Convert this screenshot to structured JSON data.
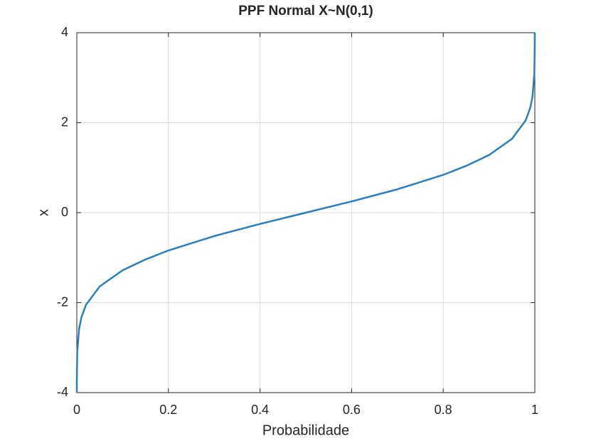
{
  "chart_data": {
    "type": "line",
    "title": "PPF Normal X~N(0,1)",
    "xlabel": "Probabilidade",
    "ylabel": "x",
    "x": [
      3e-05,
      0.0001,
      0.001,
      0.005,
      0.01,
      0.02,
      0.05,
      0.1,
      0.15,
      0.2,
      0.3,
      0.4,
      0.5,
      0.6,
      0.7,
      0.8,
      0.85,
      0.9,
      0.95,
      0.98,
      0.99,
      0.995,
      0.999,
      0.9999,
      0.99997
    ],
    "series": [
      {
        "name": "PPF",
        "color": "#2c7fbf",
        "values": [
          -4.0,
          -3.72,
          -3.09,
          -2.58,
          -2.33,
          -2.05,
          -1.64,
          -1.28,
          -1.04,
          -0.84,
          -0.52,
          -0.25,
          0,
          0.25,
          0.52,
          0.84,
          1.04,
          1.28,
          1.64,
          2.05,
          2.33,
          2.58,
          3.09,
          3.72,
          4.0
        ]
      }
    ],
    "xlim": [
      0,
      1
    ],
    "xticks": [
      0,
      0.2,
      0.4,
      0.6,
      0.8,
      1
    ],
    "ylim": [
      -4,
      4
    ],
    "yticks": [
      -4,
      -2,
      0,
      2,
      4
    ],
    "grid": true
  }
}
